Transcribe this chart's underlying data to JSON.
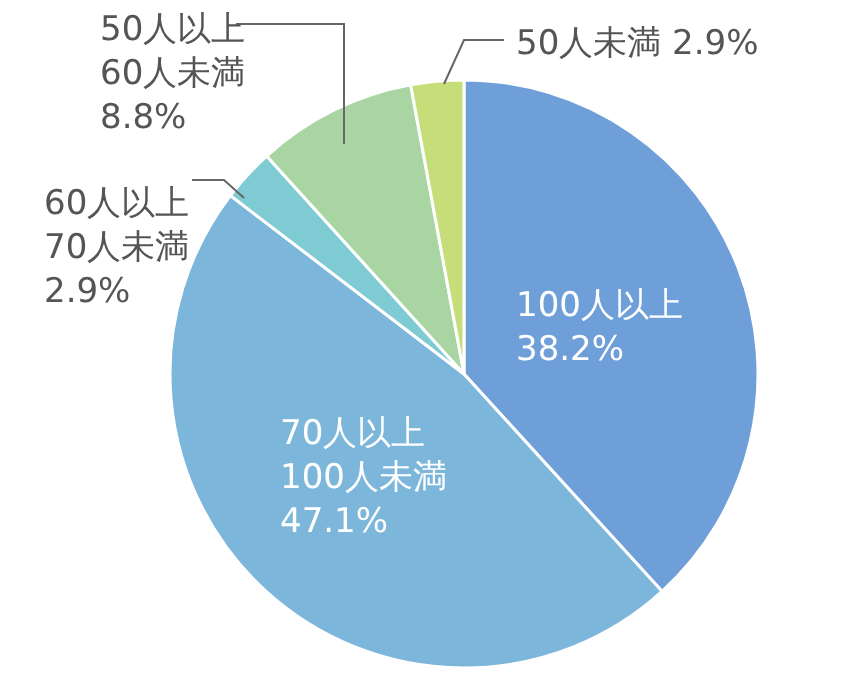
{
  "chart_data": {
    "type": "pie",
    "categories": [
      "100人以上",
      "70人以上\n100人未満",
      "60人以上\n70人未満",
      "50人以上\n60人未満",
      "50人未満"
    ],
    "values": [
      38.2,
      47.1,
      2.9,
      8.8,
      2.9
    ],
    "value_labels": [
      "38.2%",
      "47.1%",
      "2.9%",
      "8.8%",
      "2.9%"
    ],
    "colors": [
      "#6f9fd8",
      "#7cb6db",
      "#7fcbd3",
      "#a8d5a2",
      "#c6de7a"
    ]
  }
}
